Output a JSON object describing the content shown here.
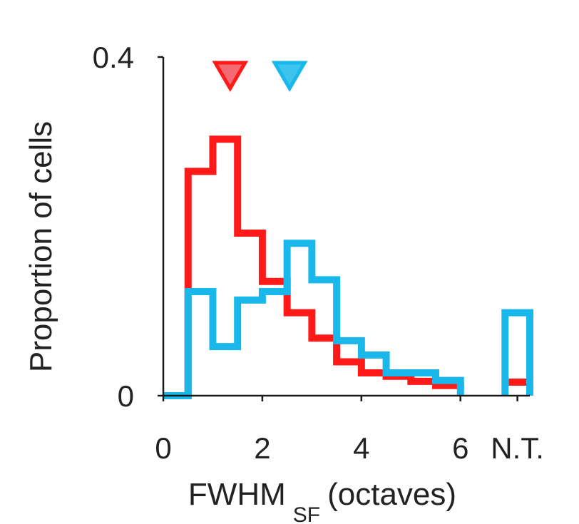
{
  "chart_data": {
    "type": "histogram",
    "title": "",
    "xlabel": {
      "main": "FWHM",
      "subscript": "SF",
      "suffix": "(octaves)"
    },
    "ylabel": "Proportion of cells",
    "xlim": [
      0,
      7.4
    ],
    "ylim": [
      0,
      0.4
    ],
    "x_ticks": [
      {
        "value": 0,
        "label": "0"
      },
      {
        "value": 2,
        "label": "2"
      },
      {
        "value": 4,
        "label": "4"
      },
      {
        "value": 6,
        "label": "6"
      },
      {
        "value": 7.15,
        "label": "N.T."
      }
    ],
    "y_ticks": [
      {
        "value": 0,
        "label": "0"
      },
      {
        "value": 0.4,
        "label": "0.4"
      }
    ],
    "bin_edges": [
      0,
      0.5,
      1.0,
      1.5,
      2.0,
      2.5,
      3.0,
      3.5,
      4.0,
      4.5,
      5.0,
      5.5,
      6.0
    ],
    "nt_bin": [
      6.9,
      7.4
    ],
    "series": [
      {
        "name": "red",
        "color": "#ff1a1a",
        "values": [
          0.0,
          0.265,
          0.303,
          0.192,
          0.135,
          0.098,
          0.068,
          0.04,
          0.027,
          0.023,
          0.017,
          0.012,
          0.008
        ],
        "nt_value": 0.016,
        "median": 1.35
      },
      {
        "name": "blue",
        "color": "#1ab8ea",
        "values": [
          0.0,
          0.123,
          0.058,
          0.113,
          0.123,
          0.18,
          0.137,
          0.065,
          0.048,
          0.027,
          0.027,
          0.018,
          0.0
        ],
        "nt_value": 0.098,
        "median": 2.55
      }
    ],
    "markers": [
      {
        "series": "red",
        "x": 1.35,
        "fill": "#f36a73",
        "stroke": "#ff1a1a"
      },
      {
        "series": "blue",
        "x": 2.55,
        "fill": "#3cc4ef",
        "stroke": "#1ab8ea"
      }
    ]
  }
}
